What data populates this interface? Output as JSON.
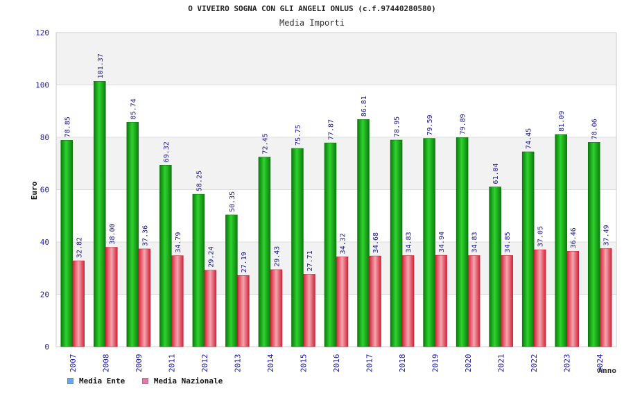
{
  "chart_data": {
    "type": "bar",
    "title": "O VIVEIRO SOGNA CON GLI ANGELI ONLUS (c.f.97440280580)",
    "subtitle": "Media Importi",
    "xlabel": "Anno",
    "ylabel": "Euro",
    "ylim": [
      0,
      120
    ],
    "yticks": [
      0,
      20,
      40,
      60,
      80,
      100,
      120
    ],
    "categories": [
      "2007",
      "2008",
      "2009",
      "2011",
      "2012",
      "2013",
      "2014",
      "2015",
      "2016",
      "2017",
      "2018",
      "2019",
      "2020",
      "2021",
      "2022",
      "2023",
      "2024"
    ],
    "series": [
      {
        "name": "Media Ente",
        "values": [
          78.85,
          101.37,
          85.74,
          69.32,
          58.25,
          50.35,
          72.45,
          75.75,
          77.87,
          86.81,
          78.95,
          79.59,
          79.89,
          61.04,
          74.45,
          81.09,
          78.06
        ]
      },
      {
        "name": "Media Nazionale",
        "values": [
          32.82,
          38.0,
          37.36,
          34.79,
          29.24,
          27.19,
          29.43,
          27.71,
          34.32,
          34.68,
          34.83,
          34.94,
          34.83,
          34.85,
          37.05,
          36.46,
          37.49
        ]
      }
    ],
    "value_labels": [
      [
        "78.85",
        "101.37",
        "85.74",
        "69.32",
        "58.25",
        "50.35",
        "72.45",
        "75.75",
        "77.87",
        "86.81",
        "78.95",
        "79.59",
        "79.89",
        "61.04",
        "74.45",
        "81.09",
        "78.06"
      ],
      [
        "32.82",
        "38.00",
        "37.36",
        "34.79",
        "29.24",
        "27.19",
        "29.43",
        "27.71",
        "34.32",
        "34.68",
        "34.83",
        "34.94",
        "34.83",
        "34.85",
        "37.05",
        "36.46",
        "37.49"
      ]
    ],
    "legend": [
      {
        "label": "Media Ente",
        "color": "#6aa6e8"
      },
      {
        "label": "Media Nazionale",
        "color": "#e07aa8"
      }
    ],
    "colors": {
      "ente": "#1fae1f",
      "nazionale": "#e8465a",
      "axis_text": "#1a1aa6",
      "band": "#f2f2f2"
    }
  }
}
